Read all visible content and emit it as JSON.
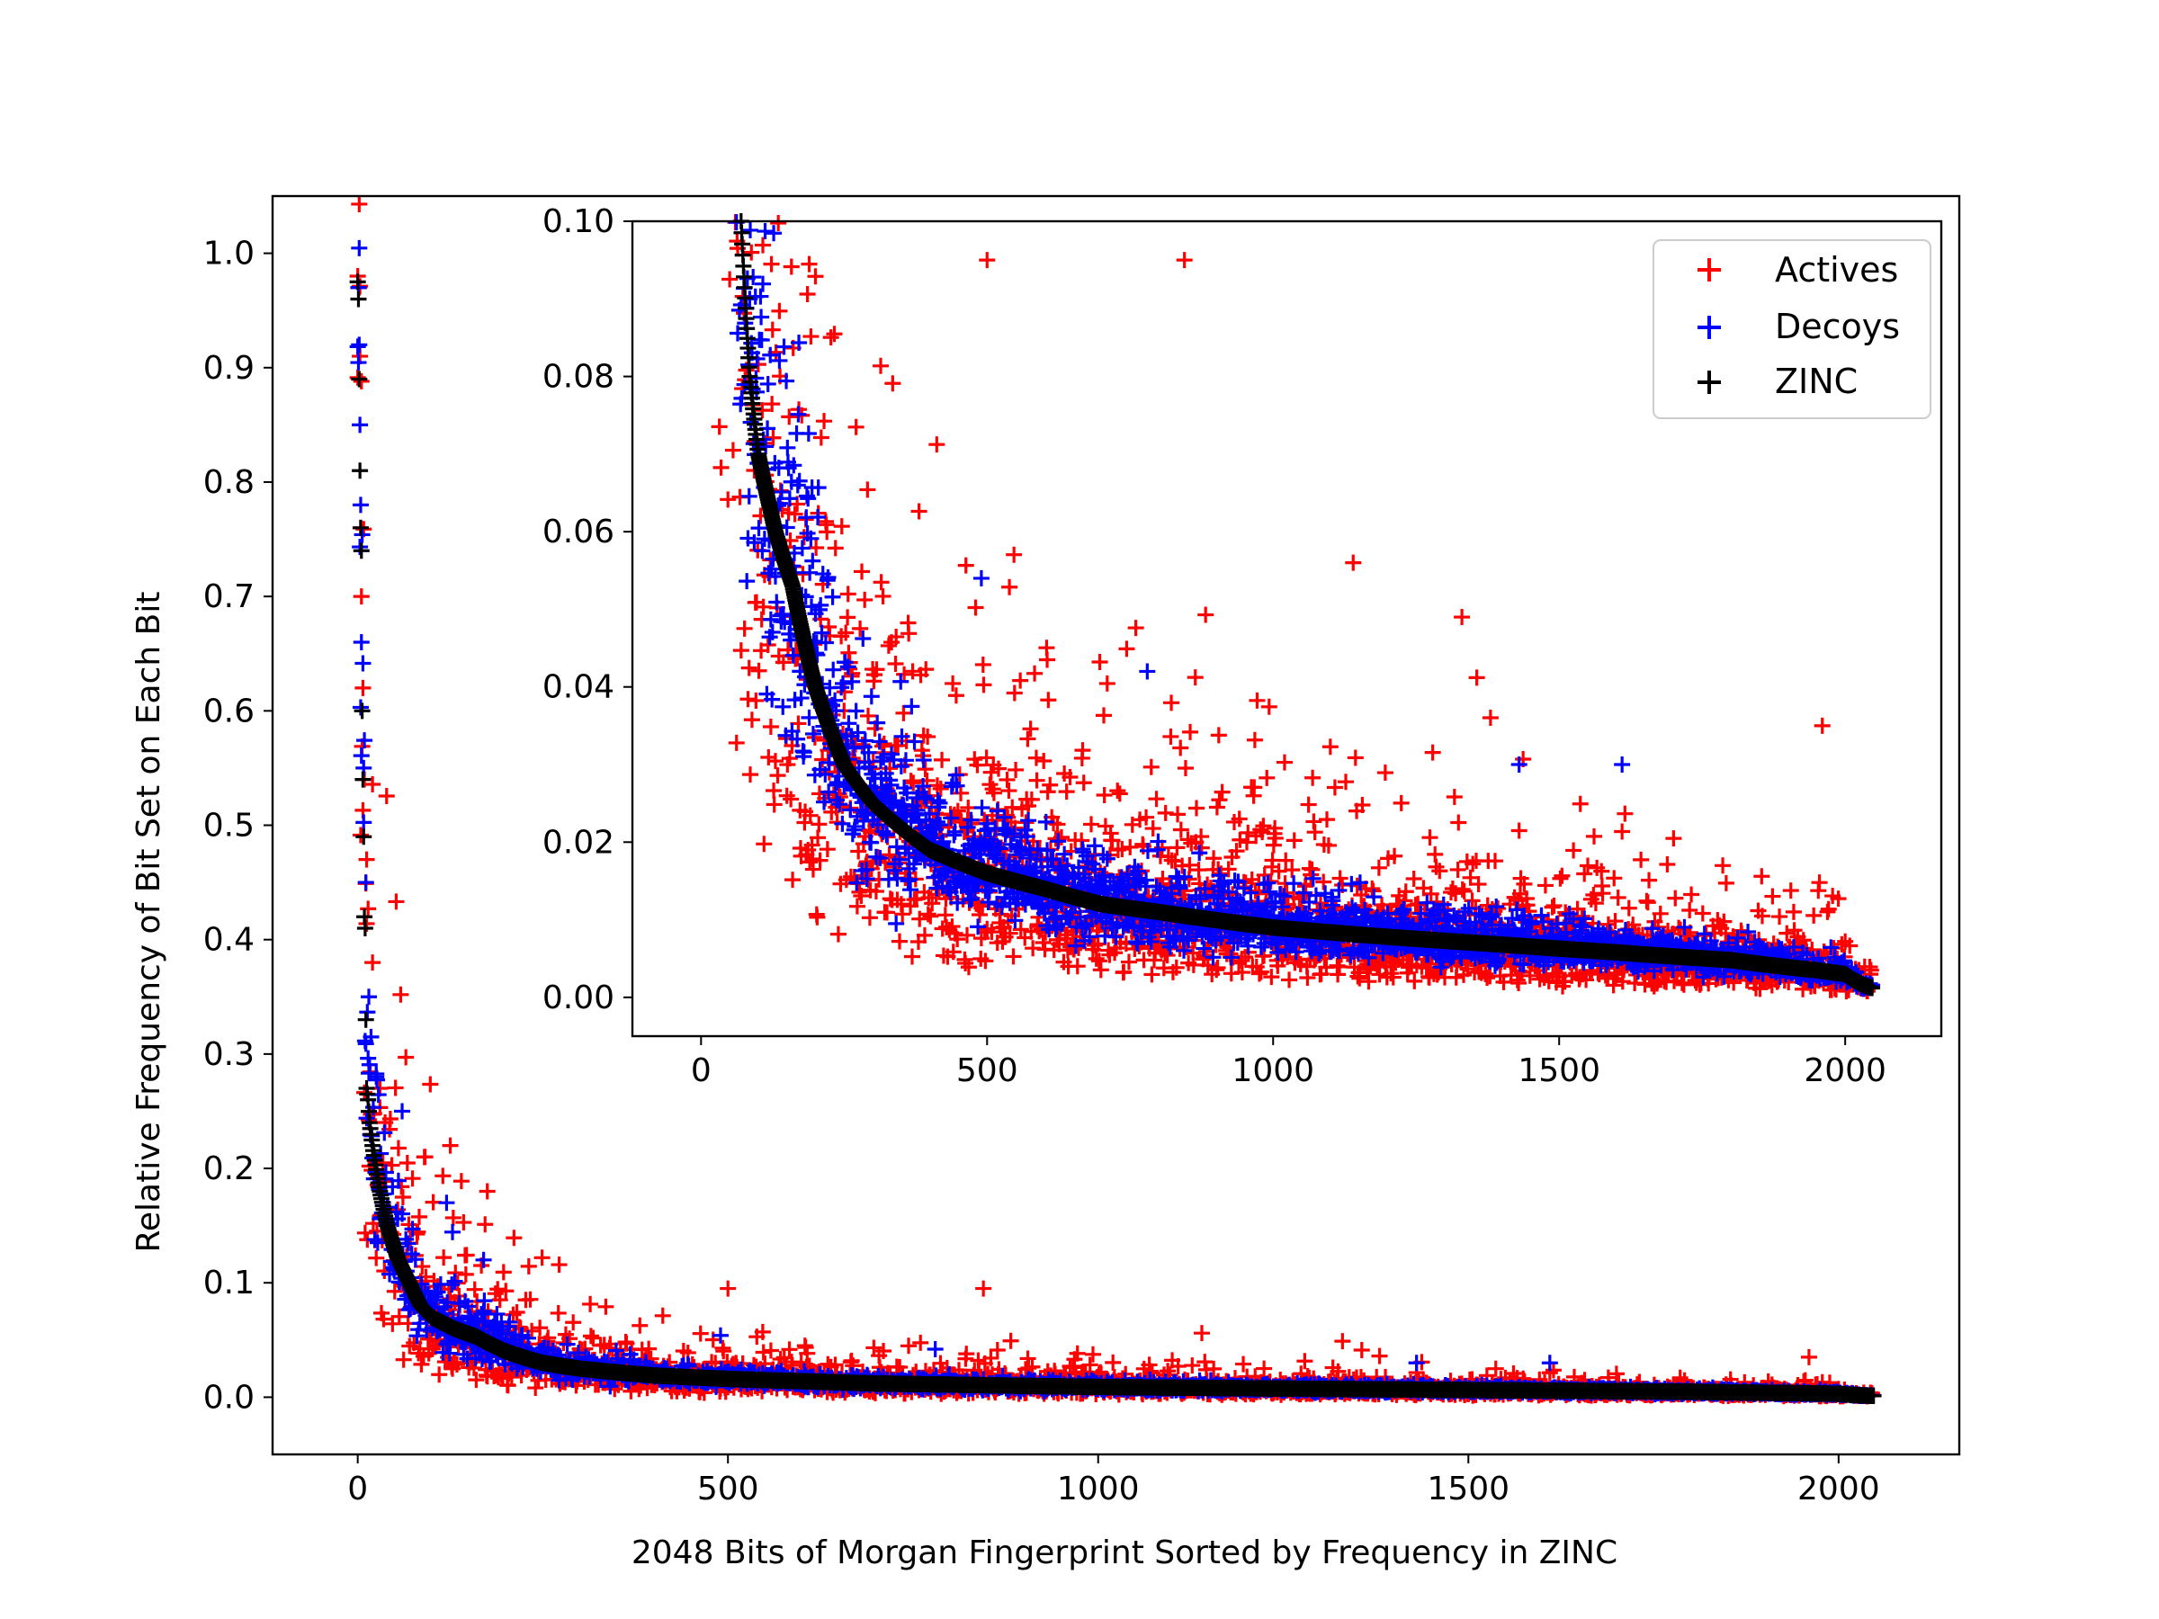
{
  "chart_data": [
    {
      "panel": "main",
      "type": "scatter",
      "marker": "+",
      "xlabel": "2048 Bits of Morgan Fingerprint Sorted by Frequency in ZINC",
      "ylabel": "Relative Frequency of Bit Set on Each Bit",
      "xlim": [
        -115,
        2163
      ],
      "ylim": [
        -0.05,
        1.05
      ],
      "x_ticks": [
        0,
        500,
        1000,
        1500,
        2000
      ],
      "y_ticks": [
        0.0,
        0.1,
        0.2,
        0.3,
        0.4,
        0.5,
        0.6,
        0.7,
        0.8,
        0.9,
        1.0
      ],
      "x_tick_labels": [
        "0",
        "500",
        "1000",
        "1500",
        "2000"
      ],
      "y_tick_labels": [
        "0.0",
        "0.1",
        "0.2",
        "0.3",
        "0.4",
        "0.5",
        "0.6",
        "0.7",
        "0.8",
        "0.9",
        "1.0"
      ],
      "grid": false,
      "n_points_per_series": 2048,
      "series": [
        {
          "name": "Actives",
          "color": "#ff0000",
          "trend": "same decay as ZINC with large scatter; values near 0.98 at x=0, ~0.25 at x=20, ~0.05 at x=200, ~0.01 at x=1000, ~0.004 at x=2048",
          "notable_points": [
            [
              0,
              0.98
            ],
            [
              2,
              0.97
            ],
            [
              3,
              0.91
            ],
            [
              4,
              0.76
            ],
            [
              5,
              0.7
            ],
            [
              7,
              0.62
            ],
            [
              9,
              0.54
            ],
            [
              12,
              0.47
            ],
            [
              20,
              0.38
            ],
            [
              30,
              0.27
            ],
            [
              90,
              0.21
            ],
            [
              125,
              0.22
            ],
            [
              175,
              0.18
            ],
            [
              500,
              0.095
            ],
            [
              845,
              0.095
            ],
            [
              1140,
              0.056
            ],
            [
              1330,
              0.049
            ],
            [
              1960,
              0.035
            ]
          ]
        },
        {
          "name": "Decoys",
          "color": "#0000ff",
          "trend": "follows ZINC closely with moderate scatter",
          "notable_points": [
            [
              1,
              0.97
            ],
            [
              2,
              0.92
            ],
            [
              3,
              0.85
            ],
            [
              4,
              0.78
            ],
            [
              5,
              0.66
            ],
            [
              8,
              0.55
            ],
            [
              11,
              0.45
            ],
            [
              15,
              0.35
            ],
            [
              25,
              0.28
            ],
            [
              60,
              0.25
            ],
            [
              120,
              0.17
            ],
            [
              170,
              0.12
            ],
            [
              490,
              0.054
            ],
            [
              780,
              0.042
            ],
            [
              1430,
              0.03
            ],
            [
              1610,
              0.03
            ]
          ]
        },
        {
          "name": "ZINC",
          "color": "#000000",
          "trend": "monotonically decreasing sorted frequency",
          "key_points": [
            [
              0,
              0.975
            ],
            [
              1,
              0.96
            ],
            [
              2,
              0.89
            ],
            [
              3,
              0.81
            ],
            [
              4,
              0.76
            ],
            [
              5,
              0.74
            ],
            [
              6,
              0.6
            ],
            [
              7,
              0.54
            ],
            [
              8,
              0.49
            ],
            [
              9,
              0.42
            ],
            [
              10,
              0.41
            ],
            [
              11,
              0.33
            ],
            [
              12,
              0.27
            ],
            [
              14,
              0.26
            ],
            [
              16,
              0.24
            ],
            [
              20,
              0.22
            ],
            [
              30,
              0.18
            ],
            [
              40,
              0.15
            ],
            [
              55,
              0.12
            ],
            [
              70,
              0.1
            ],
            [
              85,
              0.08
            ],
            [
              100,
              0.07
            ],
            [
              130,
              0.06
            ],
            [
              160,
              0.053
            ],
            [
              200,
              0.04
            ],
            [
              250,
              0.03
            ],
            [
              300,
              0.025
            ],
            [
              400,
              0.019
            ],
            [
              500,
              0.016
            ],
            [
              600,
              0.014
            ],
            [
              700,
              0.012
            ],
            [
              800,
              0.011
            ],
            [
              1000,
              0.009
            ],
            [
              1200,
              0.0078
            ],
            [
              1400,
              0.0068
            ],
            [
              1600,
              0.0058
            ],
            [
              1800,
              0.0048
            ],
            [
              1950,
              0.0035
            ],
            [
              2000,
              0.003
            ],
            [
              2047,
              0.0012
            ]
          ]
        }
      ]
    },
    {
      "panel": "inset",
      "type": "scatter",
      "marker": "+",
      "description_of_view": "zoom of the same three series with y range 0.00–0.10",
      "xlim": [
        -120,
        2168
      ],
      "ylim": [
        -0.005,
        0.1
      ],
      "x_ticks": [
        0,
        500,
        1000,
        1500,
        2000
      ],
      "y_ticks": [
        0.0,
        0.02,
        0.04,
        0.06,
        0.08,
        0.1
      ],
      "x_tick_labels": [
        "0",
        "500",
        "1000",
        "1500",
        "2000"
      ],
      "y_tick_labels": [
        "0.00",
        "0.02",
        "0.04",
        "0.06",
        "0.08",
        "0.10"
      ],
      "legend": {
        "placement": "top-right",
        "entries": [
          {
            "label": "Actives",
            "color": "#ff0000"
          },
          {
            "label": "Decoys",
            "color": "#0000ff"
          },
          {
            "label": "ZINC",
            "color": "#000000"
          }
        ]
      }
    }
  ]
}
